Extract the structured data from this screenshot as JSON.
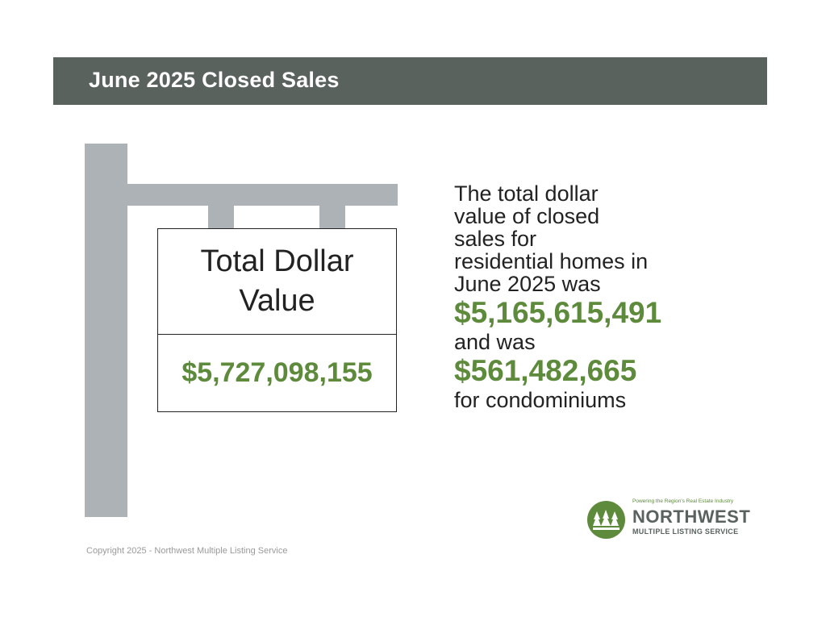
{
  "header": {
    "title": "June 2025 Closed Sales"
  },
  "sign": {
    "label_line1": "Total Dollar",
    "label_line2": "Value",
    "value": "$5,727,098,155"
  },
  "summary": {
    "lines": [
      "The total dollar",
      "value of closed",
      "sales for",
      "residential homes in",
      "June 2025 was"
    ],
    "residential_amount": "$5,165,615,491",
    "connector": "and was",
    "condo_amount": "$561,482,665",
    "closing": "for condominiums"
  },
  "footer": {
    "copyright": "Copyright 2025 - Northwest Multiple Listing Service"
  },
  "logo": {
    "tagline": "Powering the Region's Real Estate Industry",
    "name": "NORTHWEST",
    "subname": "MULTIPLE LISTING SERVICE"
  },
  "colors": {
    "header_bg": "#5a625d",
    "accent_green": "#5e8a3c",
    "post_gray": "#adb2b6"
  }
}
